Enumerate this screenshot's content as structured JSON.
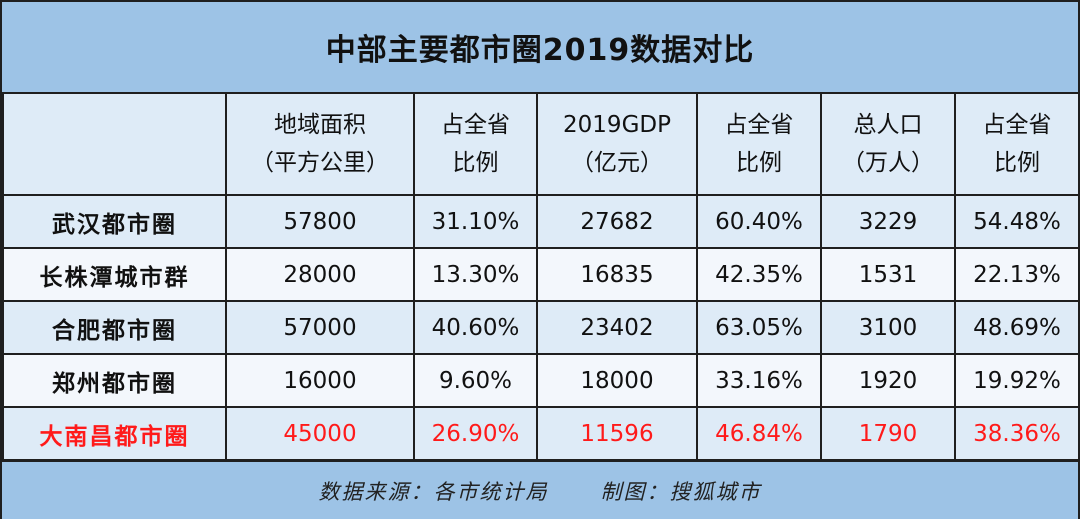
{
  "title": "中部主要都市圈2019数据对比",
  "headers": [
    {
      "line1": "",
      "line2": ""
    },
    {
      "line1": "地域面积",
      "line2": "（平方公里）"
    },
    {
      "line1": "占全省",
      "line2": "比例"
    },
    {
      "line1": "2019GDP",
      "line2": "（亿元）"
    },
    {
      "line1": "占全省",
      "line2": "比例"
    },
    {
      "line1": "总人口",
      "line2": "（万人）"
    },
    {
      "line1": "占全省",
      "line2": "比例"
    }
  ],
  "rows": [
    {
      "name": "武汉都市圈",
      "area": "57800",
      "area_pct": "31.10%",
      "gdp": "27682",
      "gdp_pct": "60.40%",
      "pop": "3229",
      "pop_pct": "54.48%"
    },
    {
      "name": "长株潭城市群",
      "area": "28000",
      "area_pct": "13.30%",
      "gdp": "16835",
      "gdp_pct": "42.35%",
      "pop": "1531",
      "pop_pct": "22.13%"
    },
    {
      "name": "合肥都市圈",
      "area": "57000",
      "area_pct": "40.60%",
      "gdp": "23402",
      "gdp_pct": "63.05%",
      "pop": "3100",
      "pop_pct": "48.69%"
    },
    {
      "name": "郑州都市圈",
      "area": "16000",
      "area_pct": "9.60%",
      "gdp": "18000",
      "gdp_pct": "33.16%",
      "pop": "1920",
      "pop_pct": "19.92%"
    },
    {
      "name": "大南昌都市圈",
      "area": "45000",
      "area_pct": "26.90%",
      "gdp": "11596",
      "gdp_pct": "46.84%",
      "pop": "1790",
      "pop_pct": "38.36%"
    }
  ],
  "highlight_color": "#ff1a1a",
  "footer": {
    "source": "数据来源：各市统计局",
    "maker": "制图：搜狐城市"
  }
}
